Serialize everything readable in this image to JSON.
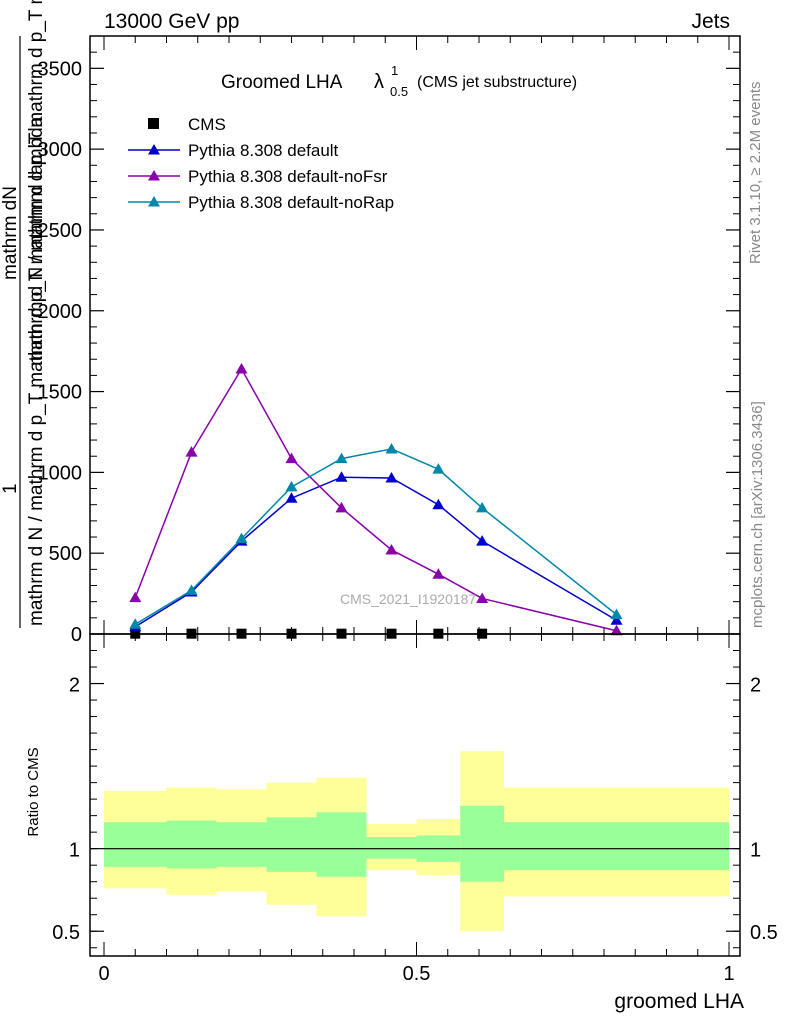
{
  "header": {
    "left": "13000 GeV pp",
    "right": "Jets"
  },
  "side_text": {
    "rivet": "Rivet 3.1.10, ≥ 2.2M events",
    "mcplots": "mcplots.cern.ch [arXiv:1306.3436]"
  },
  "watermark": "CMS_2021_I1920187",
  "chart_data": [
    {
      "type": "line",
      "title_main": "Groomed LHA",
      "title_symbol": "λ",
      "title_sup": "1",
      "title_sub": "0.5",
      "title_note": "(CMS jet substructure)",
      "ylabel_num": "1",
      "ylabel_line1": "mathrm d N / mathrm d p_T mathrm d p_T mathrm d lambda",
      "ylabel_line2": "mathrm dN",
      "ylabel_den": "mathrm d N / mathrm d p_T mathrm d p_T mathrm d lambda",
      "xlim": [
        0,
        1
      ],
      "ylim": [
        0,
        3700
      ],
      "yticks": [
        0,
        500,
        1000,
        1500,
        2000,
        2500,
        3000,
        3500
      ],
      "ytick_labels": [
        "0",
        "500",
        "1000",
        "1500",
        "2000",
        "2500",
        "3000",
        "3500"
      ],
      "legend_position": "top-left",
      "series": [
        {
          "name": "CMS",
          "marker": "square",
          "color": "#000000",
          "x": [
            0.05,
            0.14,
            0.22,
            0.3,
            0.38,
            0.46,
            0.535,
            0.605
          ],
          "values": [
            2,
            2,
            2,
            2,
            2,
            2,
            2,
            2
          ]
        },
        {
          "name": "Pythia 8.308 default",
          "marker": "triangle",
          "color": "#0000cc",
          "x": [
            0.05,
            0.14,
            0.22,
            0.3,
            0.38,
            0.46,
            0.535,
            0.605,
            0.82
          ],
          "values": [
            45,
            260,
            575,
            840,
            970,
            965,
            800,
            575,
            85
          ]
        },
        {
          "name": "Pythia 8.308 default-noFsr",
          "marker": "triangle",
          "color": "#8800aa",
          "x": [
            0.05,
            0.14,
            0.22,
            0.3,
            0.38,
            0.46,
            0.535,
            0.605,
            0.82
          ],
          "values": [
            225,
            1125,
            1640,
            1085,
            780,
            520,
            370,
            220,
            20
          ]
        },
        {
          "name": "Pythia 8.308 default-noRap",
          "marker": "triangle",
          "color": "#0088aa",
          "x": [
            0.05,
            0.14,
            0.22,
            0.3,
            0.38,
            0.46,
            0.535,
            0.605,
            0.82
          ],
          "values": [
            60,
            270,
            590,
            910,
            1085,
            1145,
            1020,
            780,
            120
          ]
        }
      ]
    },
    {
      "type": "area",
      "ylabel": "Ratio to CMS",
      "xlabel": "groomed LHA",
      "xlim": [
        0,
        1
      ],
      "ylim": [
        0.35,
        2.3
      ],
      "xticks": [
        0,
        0.5,
        1
      ],
      "xtick_labels": [
        "0",
        "0.5",
        "1"
      ],
      "yticks": [
        0.5,
        1,
        2
      ],
      "ytick_labels": [
        "0.5",
        "1",
        "2"
      ],
      "bands": [
        {
          "x0": 0.0,
          "x1": 0.1,
          "y_lo": 0.76,
          "y_hi": 1.35,
          "g_lo": 0.89,
          "g_hi": 1.16
        },
        {
          "x0": 0.1,
          "x1": 0.18,
          "y_lo": 0.72,
          "y_hi": 1.37,
          "g_lo": 0.88,
          "g_hi": 1.17
        },
        {
          "x0": 0.18,
          "x1": 0.26,
          "y_lo": 0.74,
          "y_hi": 1.36,
          "g_lo": 0.89,
          "g_hi": 1.16
        },
        {
          "x0": 0.26,
          "x1": 0.34,
          "y_lo": 0.66,
          "y_hi": 1.4,
          "g_lo": 0.86,
          "g_hi": 1.19
        },
        {
          "x0": 0.34,
          "x1": 0.42,
          "y_lo": 0.59,
          "y_hi": 1.43,
          "g_lo": 0.83,
          "g_hi": 1.22
        },
        {
          "x0": 0.42,
          "x1": 0.5,
          "y_lo": 0.87,
          "y_hi": 1.15,
          "g_lo": 0.94,
          "g_hi": 1.07
        },
        {
          "x0": 0.5,
          "x1": 0.57,
          "y_lo": 0.84,
          "y_hi": 1.18,
          "g_lo": 0.92,
          "g_hi": 1.08
        },
        {
          "x0": 0.57,
          "x1": 0.64,
          "y_lo": 0.5,
          "y_hi": 1.59,
          "g_lo": 0.8,
          "g_hi": 1.26
        },
        {
          "x0": 0.64,
          "x1": 1.0,
          "y_lo": 0.71,
          "y_hi": 1.37,
          "g_lo": 0.87,
          "g_hi": 1.16
        }
      ],
      "reference_line": 1.0
    }
  ],
  "colors": {
    "yellow_band": "#ffff99",
    "green_band": "#99ff99",
    "frame": "#000000"
  }
}
